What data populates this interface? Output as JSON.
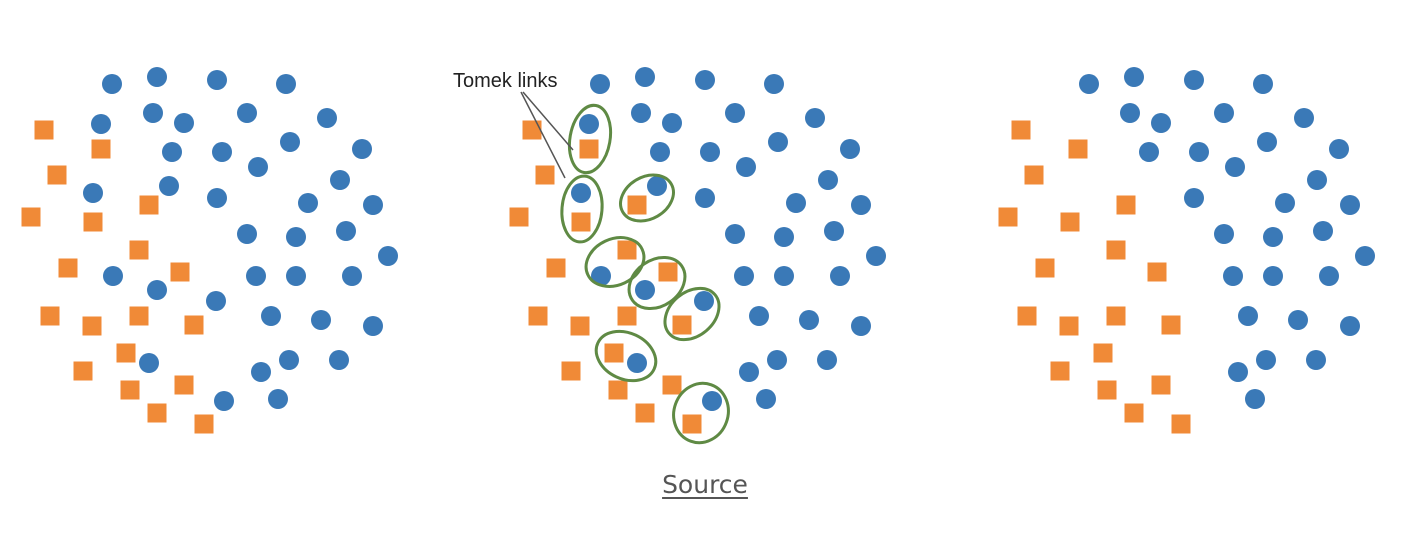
{
  "annotation_label": "Tomek links",
  "source_link_text": "Source",
  "colors": {
    "majority": "#3a79b7",
    "minority": "#f08a37",
    "link_ellipse": "#5f8a44",
    "label_line": "#555555",
    "caption": "#555555"
  },
  "icons": {
    "majority": "blue-circle-icon",
    "minority": "orange-square-icon"
  },
  "panels": [
    {
      "name": "original",
      "tomek_links_shown": false,
      "tomek_link_majority_removed": false
    },
    {
      "name": "tomek-links",
      "tomek_links_shown": true,
      "tomek_link_count": 8
    },
    {
      "name": "after-removal",
      "tomek_links_shown": false,
      "tomek_link_majority_removed": true
    }
  ]
}
